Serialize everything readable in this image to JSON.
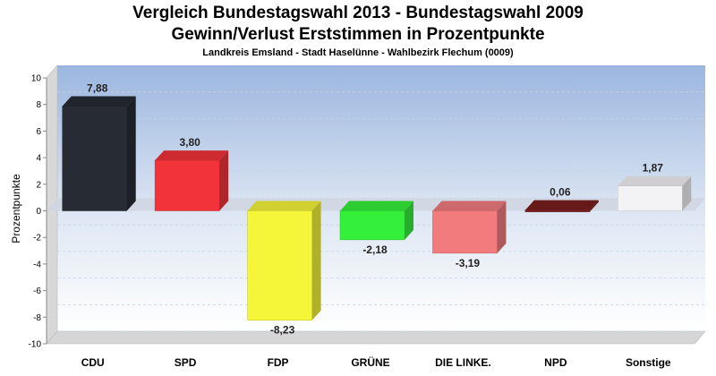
{
  "titles": {
    "line1": "Vergleich Bundestagswahl 2013 - Bundestagswahl 2009",
    "line2": "Gewinn/Verlust Erststimmen in Prozentpunkte",
    "line3": "Landkreis Emsland - Stadt Haselünne - Wahlbezirk Flechum (0009)"
  },
  "chart_data": {
    "type": "bar",
    "title": "Vergleich Bundestagswahl 2013 - Bundestagswahl 2009",
    "subtitle": "Gewinn/Verlust Erststimmen in Prozentpunkte",
    "xlabel": "",
    "ylabel": "Prozentpunkte",
    "ylim": [
      -10,
      10
    ],
    "yticks": [
      10,
      8,
      6,
      4,
      2,
      0,
      -2,
      -4,
      -6,
      -8,
      -10
    ],
    "grid": true,
    "categories": [
      "CDU",
      "SPD",
      "FDP",
      "GRÜNE",
      "DIE LINKE.",
      "NPD",
      "Sonstige"
    ],
    "values": [
      7.88,
      3.8,
      -8.23,
      -2.18,
      -3.19,
      0.06,
      1.87
    ],
    "labels": [
      "7,88",
      "3,80",
      "-8,23",
      "-2,18",
      "-3,19",
      "0,06",
      "1,87"
    ],
    "colors": [
      "#272b33",
      "#f2333a",
      "#f5f53a",
      "#35f03a",
      "#f27b7e",
      "#7a1f1f",
      "#f3f3f6"
    ]
  }
}
